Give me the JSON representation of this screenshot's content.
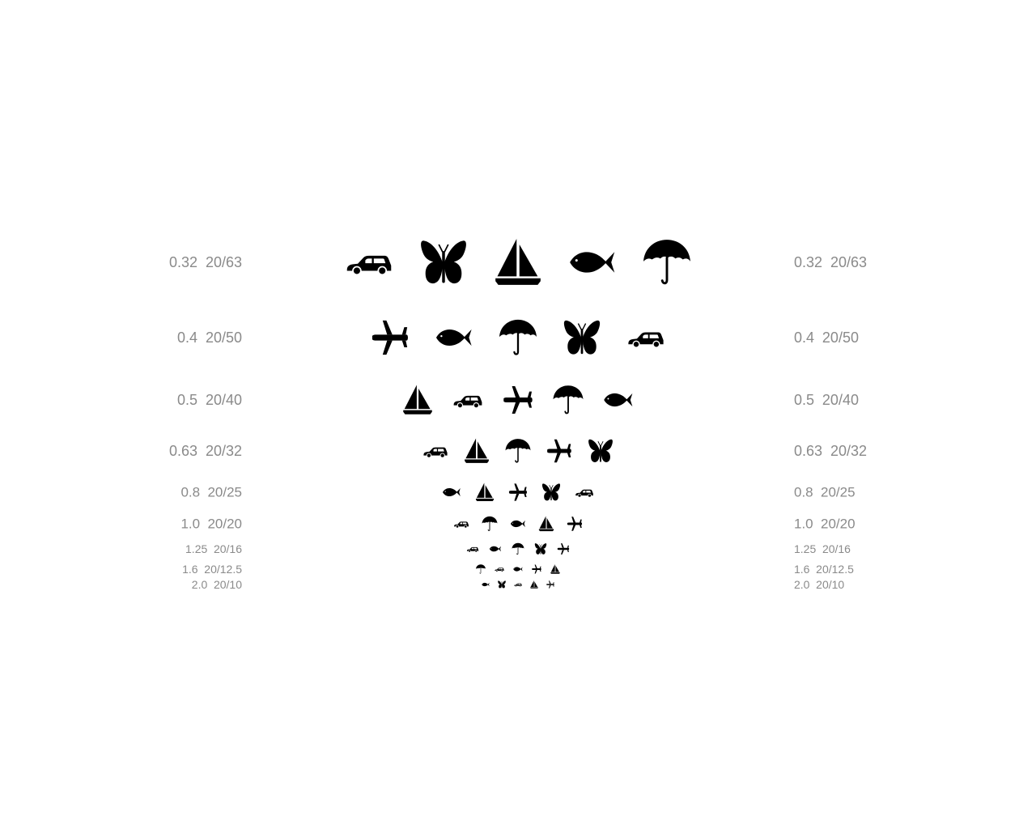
{
  "chart": {
    "symbols_legend": [
      "car",
      "butterfly",
      "sailboat",
      "fish",
      "umbrella",
      "airplane"
    ],
    "ink_color": "#000000",
    "label_color": "#8a8a8a",
    "rows": [
      {
        "decimal": "0.32",
        "snellen": "20/63",
        "symbols": [
          "car-icon",
          "butterfly-icon",
          "sailboat-icon",
          "fish-icon",
          "umbrella-icon"
        ]
      },
      {
        "decimal": "0.4",
        "snellen": "20/50",
        "symbols": [
          "airplane-icon",
          "fish-icon",
          "umbrella-icon",
          "butterfly-icon",
          "car-icon"
        ]
      },
      {
        "decimal": "0.5",
        "snellen": "20/40",
        "symbols": [
          "sailboat-icon",
          "car-icon",
          "airplane-icon",
          "umbrella-icon",
          "fish-icon"
        ]
      },
      {
        "decimal": "0.63",
        "snellen": "20/32",
        "symbols": [
          "car-icon",
          "sailboat-icon",
          "umbrella-icon",
          "airplane-icon",
          "butterfly-icon"
        ]
      },
      {
        "decimal": "0.8",
        "snellen": "20/25",
        "symbols": [
          "fish-icon",
          "sailboat-icon",
          "airplane-icon",
          "butterfly-icon",
          "car-icon"
        ]
      },
      {
        "decimal": "1.0",
        "snellen": "20/20",
        "symbols": [
          "car-icon",
          "umbrella-icon",
          "fish-icon",
          "sailboat-icon",
          "airplane-icon"
        ]
      },
      {
        "decimal": "1.25",
        "snellen": "20/16",
        "symbols": [
          "car-icon",
          "fish-icon",
          "umbrella-icon",
          "butterfly-icon",
          "airplane-icon"
        ]
      },
      {
        "decimal": "1.6",
        "snellen": "20/12.5",
        "symbols": [
          "umbrella-icon",
          "car-icon",
          "fish-icon",
          "airplane-icon",
          "sailboat-icon"
        ]
      },
      {
        "decimal": "2.0",
        "snellen": "20/10",
        "symbols": [
          "fish-icon",
          "butterfly-icon",
          "car-icon",
          "sailboat-icon",
          "airplane-icon"
        ]
      }
    ]
  }
}
